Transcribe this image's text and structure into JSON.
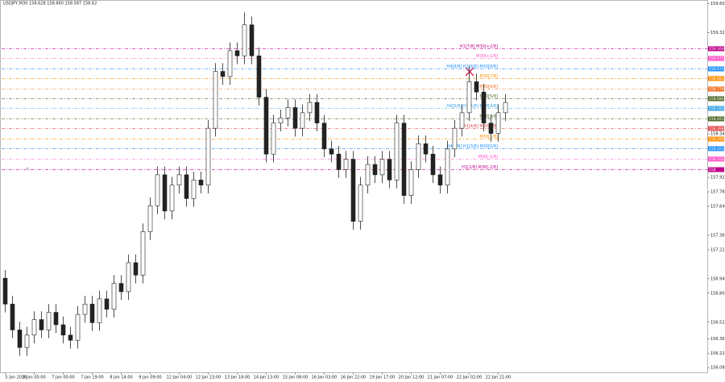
{
  "chart_data": {
    "type": "candlestick",
    "title": "USDJPY,M30  158.628 158.660 158.587 158.62",
    "categories": [
      "5 Jan 2026",
      null,
      null,
      null,
      "6 Jan 05:00",
      null,
      null,
      null,
      "7 Jan 00:00",
      null,
      null,
      null,
      "7 Jan 19:00",
      null,
      null,
      null,
      "8 Jan 14:00",
      null,
      null,
      null,
      "9 Jan 09:00",
      null,
      null,
      null,
      "12 Jan 04:00",
      null,
      null,
      null,
      "12 Jan 23:00",
      null,
      null,
      null,
      "13 Jan 18:00",
      null,
      null,
      null,
      "14 Jan 13:00",
      null,
      null,
      null,
      "15 Jan 08:00",
      null,
      null,
      null,
      "16 Jan 03:00",
      null,
      null,
      null,
      "16 Jan 22:00",
      null,
      null,
      null,
      "19 Jan 17:00",
      null,
      null,
      null,
      "20 Jan 12:00",
      null,
      null,
      null,
      "21 Jan 07:00",
      null,
      null,
      null,
      "22 Jan 02:00",
      null,
      null,
      null,
      "22 Jan 21:00",
      null
    ],
    "open": [
      156.95,
      156.7,
      156.45,
      156.28,
      156.4,
      156.55,
      156.45,
      156.62,
      156.5,
      156.4,
      156.35,
      156.6,
      156.7,
      156.52,
      156.75,
      156.65,
      156.9,
      156.82,
      157.1,
      156.98,
      157.4,
      157.65,
      157.95,
      157.6,
      157.85,
      157.95,
      157.72,
      157.9,
      157.85,
      158.4,
      158.95,
      158.9,
      159.15,
      159.1,
      159.4,
      159.1,
      158.7,
      158.15,
      158.45,
      158.5,
      158.6,
      158.4,
      158.55,
      158.65,
      158.45,
      158.2,
      158.15,
      158.0,
      158.1,
      157.5,
      157.85,
      158.05,
      157.95,
      158.1,
      157.9,
      158.45,
      157.75,
      158.0,
      158.25,
      158.15,
      157.95,
      157.85,
      158.2,
      158.4,
      158.55,
      158.85,
      158.75,
      158.45,
      158.35,
      158.55
    ],
    "high": [
      157.03,
      156.78,
      156.53,
      156.48,
      156.63,
      156.63,
      156.7,
      156.7,
      156.58,
      156.48,
      156.68,
      156.78,
      156.78,
      156.83,
      156.83,
      156.98,
      156.98,
      157.18,
      157.18,
      157.48,
      157.73,
      158.03,
      158.03,
      157.93,
      158.03,
      158.03,
      157.98,
      157.98,
      158.48,
      159.03,
      159.03,
      159.23,
      159.23,
      159.52,
      159.48,
      159.18,
      158.78,
      158.53,
      158.58,
      158.68,
      158.68,
      158.63,
      158.73,
      158.73,
      158.53,
      158.28,
      158.23,
      158.18,
      158.18,
      157.93,
      158.13,
      158.13,
      158.18,
      158.18,
      158.53,
      158.53,
      158.08,
      158.33,
      158.33,
      158.23,
      158.03,
      158.28,
      158.48,
      158.63,
      159.0,
      158.93,
      158.83,
      158.53,
      158.63,
      158.73
    ],
    "low": [
      156.62,
      156.37,
      156.2,
      156.2,
      156.32,
      156.37,
      156.37,
      156.42,
      156.32,
      156.27,
      156.27,
      156.52,
      156.44,
      156.44,
      156.57,
      156.57,
      156.74,
      156.74,
      156.9,
      156.9,
      157.32,
      157.57,
      157.52,
      157.52,
      157.77,
      157.64,
      157.64,
      157.77,
      157.77,
      158.32,
      158.82,
      158.82,
      159.02,
      159.02,
      159.02,
      158.62,
      158.07,
      158.07,
      158.37,
      158.42,
      158.32,
      158.32,
      158.47,
      158.37,
      158.12,
      158.07,
      157.92,
      157.92,
      157.42,
      157.42,
      157.77,
      157.87,
      157.87,
      157.82,
      157.82,
      157.67,
      157.67,
      157.92,
      158.07,
      157.87,
      157.77,
      157.77,
      158.12,
      158.32,
      158.47,
      158.67,
      158.37,
      158.27,
      158.27,
      158.47
    ],
    "close": [
      156.7,
      156.45,
      156.28,
      156.4,
      156.55,
      156.45,
      156.62,
      156.5,
      156.4,
      156.35,
      156.6,
      156.7,
      156.52,
      156.75,
      156.65,
      156.9,
      156.82,
      157.1,
      156.98,
      157.4,
      157.65,
      157.95,
      157.6,
      157.85,
      157.95,
      157.72,
      157.9,
      157.85,
      158.4,
      158.95,
      158.9,
      159.15,
      159.1,
      159.4,
      159.1,
      158.7,
      158.15,
      158.45,
      158.5,
      158.6,
      158.4,
      158.55,
      158.65,
      158.45,
      158.2,
      158.15,
      158.0,
      158.1,
      157.5,
      157.85,
      158.05,
      157.95,
      158.1,
      157.9,
      158.45,
      157.75,
      158.0,
      158.25,
      158.15,
      157.95,
      157.85,
      158.2,
      158.4,
      158.55,
      158.85,
      158.75,
      158.45,
      158.35,
      158.55,
      158.65
    ],
    "color": "#222222",
    "ylim": [
      156.04,
      159.64
    ],
    "yticks": [
      159.605,
      159.325,
      158.345,
      157.925,
      157.785,
      157.645,
      157.365,
      157.225,
      156.945,
      156.805,
      156.525,
      156.365,
      156.225,
      156.085
    ],
    "levels": [
      {
        "label": "H1[7/8] M30[+2/8]",
        "value": 159.169,
        "color": "#c0008c"
      },
      {
        "label": "M30[+1/8]",
        "value": 159.075,
        "color": "#ff4fc8"
      },
      {
        "label": "H4[8/8] H1[8/8] M30[8/8]",
        "value": 158.974,
        "color": "#1e8fff"
      },
      {
        "label": "M30[7/8]",
        "value": 158.881,
        "color": "#ff8c00"
      },
      {
        "label": "M30[6/8]",
        "value": 158.779,
        "color": "#f07020"
      },
      {
        "label": "M30[5/8]",
        "value": 158.686,
        "color": "#4f6b2a"
      },
      {
        "label": "H4[6/8] H1[5/8] M30[4/8]",
        "value": 158.592,
        "color": "#36a2e6"
      },
      {
        "label": "M30[3/8]",
        "value": 158.491,
        "color": "#4f6b2a"
      },
      {
        "label": "H1[4/8] M30[2/8]",
        "value": 158.398,
        "color": "#e04848"
      },
      {
        "label": "M30[1/8]",
        "value": 158.296,
        "color": "#ff8c00"
      },
      {
        "label": "H4[4/8] H1[3/8] M30[0/8]",
        "value": 158.203,
        "color": "#1e8fff"
      },
      {
        "label": "M30[-1/8]",
        "value": 158.102,
        "color": "#ff4fc8"
      },
      {
        "label": "H1[2/8] M30[-2/8]",
        "value": 158.0,
        "color": "#c0008c"
      }
    ]
  }
}
